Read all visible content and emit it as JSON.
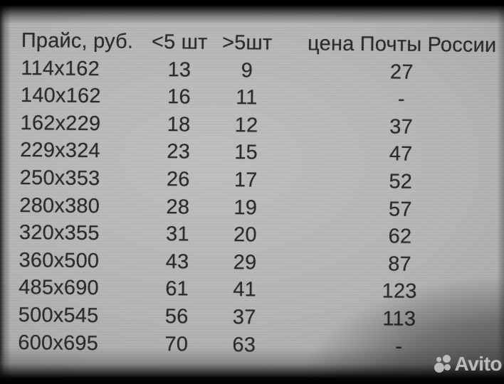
{
  "table": {
    "headers": [
      "Прайс, руб.",
      "<5 шт",
      ">5шт",
      "цена Почты России"
    ],
    "rows": [
      [
        "114x162",
        "13",
        "9",
        "27"
      ],
      [
        "140x162",
        "16",
        "11",
        "-"
      ],
      [
        "162x229",
        "18",
        "12",
        "37"
      ],
      [
        "229x324",
        "23",
        "15",
        "47"
      ],
      [
        "250x353",
        "26",
        "17",
        "52"
      ],
      [
        "280x380",
        "28",
        "19",
        "57"
      ],
      [
        "320x355",
        "31",
        "20",
        "62"
      ],
      [
        "360x500",
        "43",
        "29",
        "87"
      ],
      [
        "485x690",
        "61",
        "41",
        "123"
      ],
      [
        "500x545",
        "56",
        "37",
        "113"
      ],
      [
        "600x695",
        "70",
        "63",
        "-"
      ]
    ]
  },
  "watermark": {
    "brand": "Avito"
  },
  "colors": {
    "screen_bg": "#b5b5b5",
    "text": "#2a2a2a",
    "edge_shadow": "#000000",
    "watermark": "#cacaca"
  }
}
